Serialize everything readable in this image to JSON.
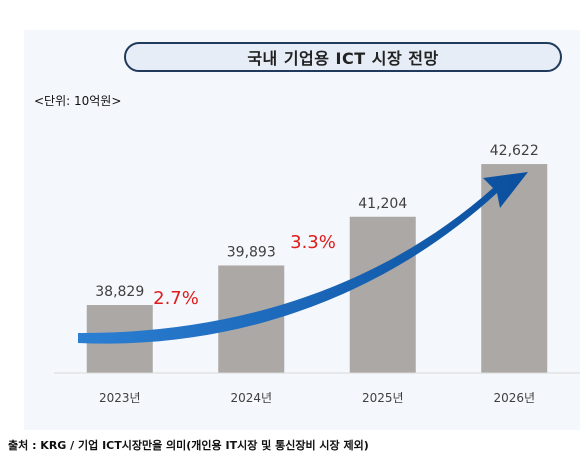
{
  "chart_data": {
    "type": "bar",
    "title": "국내 기업용 ICT 시장 전망",
    "unit": "<단위: 10억원>",
    "categories": [
      "2023년",
      "2024년",
      "2025년",
      "2026년"
    ],
    "values": [
      38829,
      39893,
      41204,
      42622
    ],
    "value_labels": [
      "38,829",
      "39,893",
      "41,204",
      "42,622"
    ],
    "growth_rates": [
      "2.7%",
      "3.3%"
    ],
    "source": "출처 : KRG / 기업 ICT시장만을 의미(개인용 IT시장 및 통신장비 시장 제외)",
    "colors": {
      "bar": "#aca8a6",
      "arrow": "#1a6fc4",
      "growth_text": "#e01b1b"
    },
    "ylim": [
      37000,
      43000
    ],
    "grid": false
  }
}
